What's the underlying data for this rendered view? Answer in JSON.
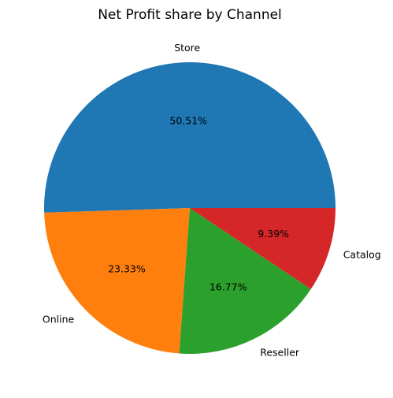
{
  "chart_data": {
    "type": "pie",
    "title": "Net Profit share by Channel",
    "slices": [
      {
        "label": "Store",
        "value": 50.51,
        "pct_label": "50.51%",
        "color": "#1f77b4"
      },
      {
        "label": "Online",
        "value": 23.33,
        "pct_label": "23.33%",
        "color": "#ff7f0e"
      },
      {
        "label": "Reseller",
        "value": 16.77,
        "pct_label": "16.77%",
        "color": "#2ca02c"
      },
      {
        "label": "Catalog",
        "value": 9.39,
        "pct_label": "9.39%",
        "color": "#d62728"
      }
    ],
    "start_angle_deg": 0,
    "direction": "counterclockwise"
  }
}
